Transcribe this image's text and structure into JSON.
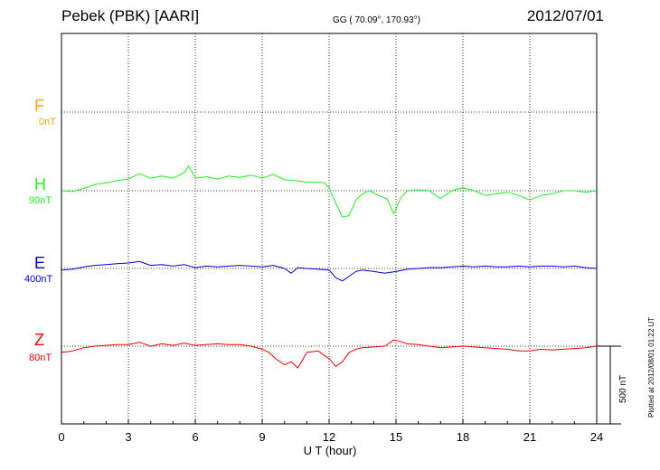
{
  "header": {
    "station": "Pebek (PBK)  [AARI]",
    "coords": "GG ( 70.09°, 170.93°)",
    "date": "2012/07/01"
  },
  "plotted_note": "Plotted at 2012/08/01 01:22 UT",
  "colors": {
    "F": "#ffa500",
    "H": "#22ee22",
    "E": "#0000dd",
    "Z": "#ee0000",
    "grid": "#000000",
    "frame": "#000000"
  },
  "chart_data": {
    "type": "line",
    "xlabel": "U T (hour)",
    "xlim": [
      0,
      24
    ],
    "x_ticks": [
      "0",
      "3",
      "6",
      "9",
      "12",
      "15",
      "18",
      "21",
      "24"
    ],
    "scale_bar": "500 nT",
    "grid": true,
    "series": [
      {
        "name": "F",
        "label": "0nT",
        "x": [],
        "y": []
      },
      {
        "name": "H",
        "label": "90nT",
        "x": [
          0,
          0.5,
          1.0,
          1.5,
          2.0,
          2.5,
          3.0,
          3.5,
          4.0,
          4.5,
          5.0,
          5.5,
          5.7,
          6.0,
          6.5,
          7.0,
          7.5,
          8.0,
          8.5,
          9.0,
          9.5,
          10.0,
          10.5,
          11.0,
          11.5,
          11.8,
          12.0,
          12.3,
          12.6,
          12.9,
          13.2,
          13.5,
          13.8,
          14.2,
          14.6,
          14.9,
          15.2,
          15.5,
          16.0,
          16.5,
          17.0,
          17.5,
          18.0,
          18.5,
          19.0,
          19.5,
          20.0,
          20.5,
          21.0,
          21.5,
          22.0,
          22.5,
          23.0,
          23.5,
          24.0
        ],
        "y": [
          0,
          -5,
          15,
          40,
          50,
          65,
          75,
          110,
          80,
          95,
          80,
          115,
          160,
          80,
          90,
          75,
          95,
          85,
          100,
          80,
          105,
          70,
          65,
          55,
          55,
          50,
          20,
          -80,
          -170,
          -160,
          -60,
          -20,
          0,
          -30,
          -50,
          -150,
          -50,
          0,
          5,
          0,
          -50,
          0,
          20,
          0,
          -30,
          -20,
          -10,
          -30,
          -60,
          -30,
          -20,
          0,
          0,
          -10,
          0
        ]
      },
      {
        "name": "E",
        "label": "400nT",
        "x": [
          0,
          0.5,
          1.0,
          1.5,
          2.0,
          2.5,
          3.0,
          3.5,
          4.0,
          4.5,
          5.0,
          5.5,
          6.0,
          6.5,
          7.0,
          7.5,
          8.0,
          8.5,
          9.0,
          9.5,
          10.0,
          10.3,
          10.6,
          11.0,
          11.5,
          12.0,
          12.3,
          12.6,
          12.9,
          13.2,
          13.5,
          14.0,
          14.5,
          15.0,
          15.5,
          16.0,
          16.5,
          17.0,
          17.5,
          18.0,
          18.5,
          19.0,
          19.5,
          20.0,
          20.5,
          21.0,
          21.5,
          22.0,
          22.5,
          23.0,
          23.5,
          24.0
        ],
        "y": [
          -10,
          -5,
          10,
          20,
          25,
          30,
          35,
          45,
          20,
          25,
          15,
          25,
          5,
          15,
          10,
          15,
          20,
          15,
          10,
          20,
          0,
          -30,
          5,
          0,
          -5,
          -10,
          -60,
          -80,
          -50,
          -20,
          -10,
          -20,
          -30,
          -20,
          -5,
          0,
          5,
          5,
          10,
          15,
          10,
          15,
          10,
          10,
          15,
          10,
          15,
          15,
          10,
          15,
          5,
          0
        ]
      },
      {
        "name": "Z",
        "label": "80nT",
        "x": [
          0,
          0.5,
          1.0,
          1.5,
          2.0,
          2.5,
          3.0,
          3.5,
          4.0,
          4.5,
          5.0,
          5.5,
          6.0,
          6.5,
          7.0,
          7.5,
          8.0,
          8.5,
          9.0,
          9.3,
          9.6,
          10.0,
          10.3,
          10.6,
          11.0,
          11.5,
          12.0,
          12.3,
          12.6,
          12.9,
          13.2,
          13.5,
          14.0,
          14.5,
          14.9,
          15.2,
          15.5,
          16.0,
          16.5,
          17.0,
          17.5,
          18.0,
          18.5,
          19.0,
          19.5,
          20.0,
          20.5,
          21.0,
          21.5,
          22.0,
          22.5,
          23.0,
          23.5,
          24.0
        ],
        "y": [
          -40,
          -30,
          -10,
          0,
          5,
          10,
          10,
          25,
          0,
          15,
          5,
          20,
          5,
          10,
          15,
          10,
          10,
          0,
          -20,
          -40,
          -80,
          -120,
          -100,
          -140,
          -40,
          -30,
          -80,
          -130,
          -100,
          -40,
          -20,
          -10,
          -5,
          0,
          40,
          30,
          15,
          10,
          0,
          -10,
          -5,
          0,
          -5,
          -10,
          -15,
          -20,
          -30,
          -30,
          -20,
          -25,
          -20,
          -15,
          -10,
          0
        ]
      }
    ]
  }
}
